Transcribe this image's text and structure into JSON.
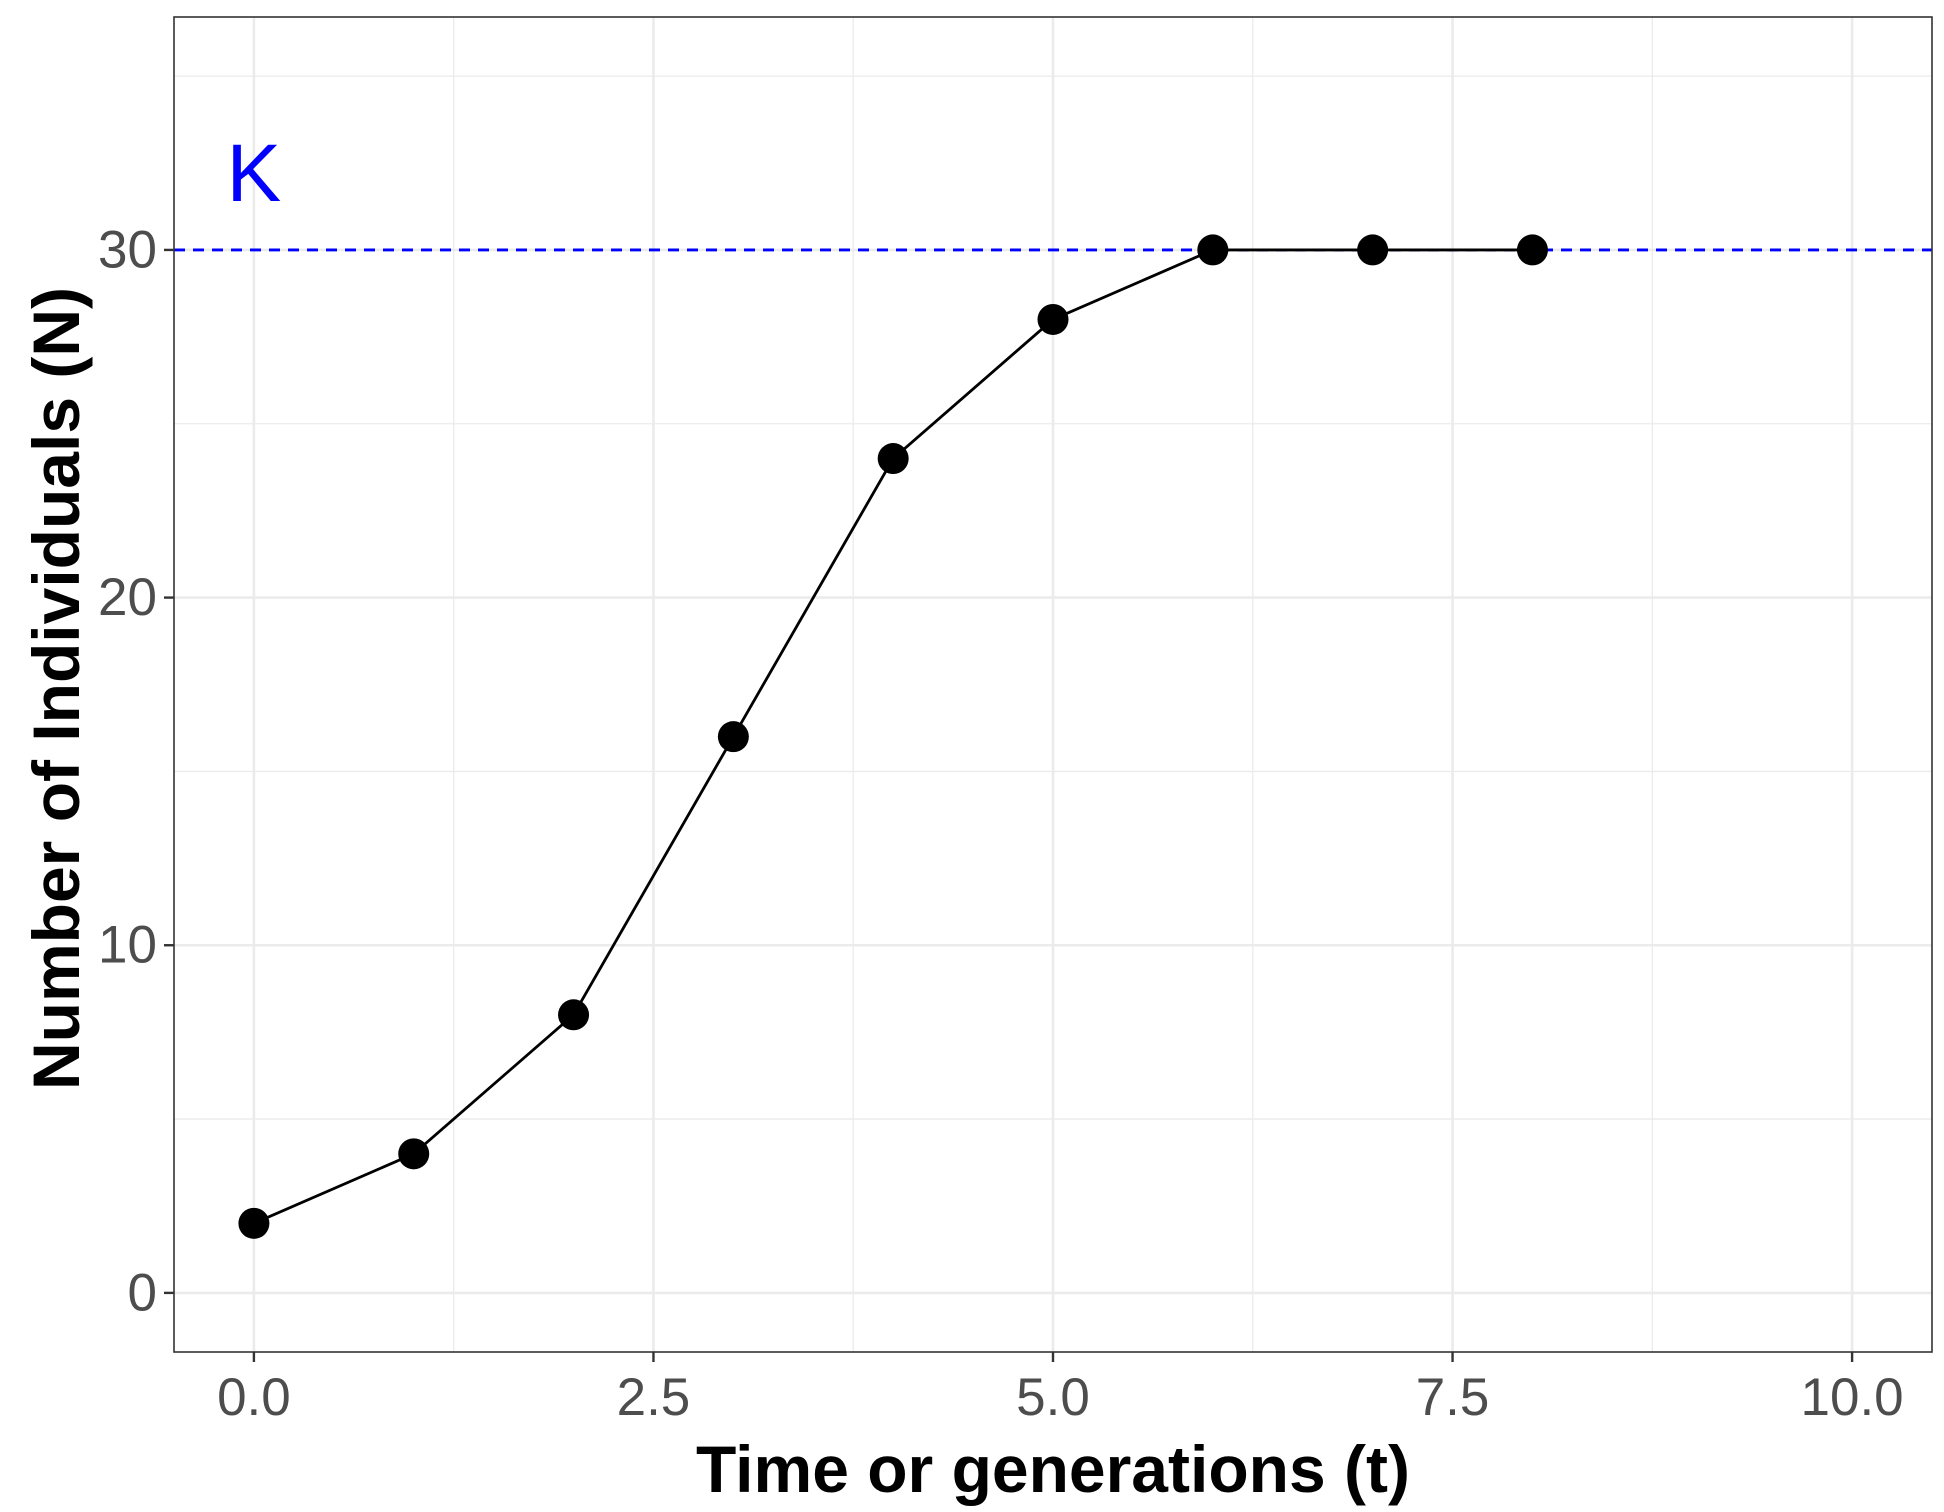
{
  "chart_data": {
    "type": "line",
    "title": "",
    "xlabel": "Time or generations (t)",
    "ylabel": "Number of Individuals (N)",
    "xlim": [
      -0.5,
      10.5
    ],
    "ylim": [
      -1.7,
      36.7
    ],
    "x_ticks": [
      0.0,
      2.5,
      5.0,
      7.5,
      10.0
    ],
    "x_tick_labels": [
      "0.0",
      "2.5",
      "5.0",
      "7.5",
      "10.0"
    ],
    "y_ticks": [
      0,
      10,
      20,
      30
    ],
    "y_tick_labels": [
      "0",
      "10",
      "20",
      "30"
    ],
    "grid": true,
    "series": [
      {
        "x": [
          0,
          1,
          2,
          3,
          4,
          5,
          6,
          7,
          8
        ],
        "y": [
          2,
          4,
          8,
          16,
          24,
          28,
          30,
          30,
          30
        ],
        "color": "#000000",
        "markers": true
      }
    ],
    "reference_line": {
      "orientation": "horizontal",
      "y": 30,
      "style": "dashed",
      "color": "#0000ff"
    },
    "annotation": {
      "text": "K",
      "x": 0,
      "y": 32.2,
      "color": "#0000ff"
    }
  }
}
